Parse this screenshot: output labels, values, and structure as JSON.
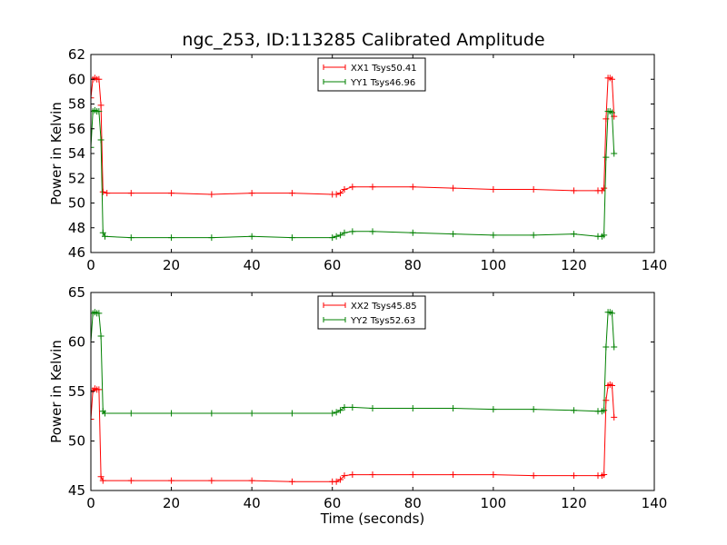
{
  "title": "ngc_253, ID:113285 Calibrated Amplitude",
  "xlabel": "Time (seconds)",
  "chart_data": [
    {
      "type": "line",
      "ylabel": "Power in Kelvin",
      "xlim": [
        0,
        140
      ],
      "ylim": [
        46,
        62
      ],
      "xticks": [
        "0",
        "20",
        "40",
        "60",
        "80",
        "100",
        "120",
        "140"
      ],
      "yticks": [
        "46",
        "48",
        "50",
        "52",
        "54",
        "56",
        "58",
        "60",
        "62"
      ],
      "legend_placement": "top-center",
      "series": [
        {
          "name": "XX1 Tsys50.41",
          "color": "#ff0000",
          "marker": "+",
          "points": [
            [
              0,
              58.5
            ],
            [
              0.5,
              60
            ],
            [
              1,
              60.1
            ],
            [
              1.5,
              60
            ],
            [
              2,
              60
            ],
            [
              2.5,
              57.9
            ],
            [
              3,
              50.9
            ],
            [
              4,
              50.8
            ],
            [
              10,
              50.8
            ],
            [
              20,
              50.8
            ],
            [
              30,
              50.7
            ],
            [
              40,
              50.8
            ],
            [
              50,
              50.8
            ],
            [
              60,
              50.7
            ],
            [
              61,
              50.7
            ],
            [
              62,
              50.8
            ],
            [
              63,
              51.1
            ],
            [
              65,
              51.3
            ],
            [
              70,
              51.3
            ],
            [
              80,
              51.3
            ],
            [
              90,
              51.2
            ],
            [
              100,
              51.1
            ],
            [
              110,
              51.1
            ],
            [
              120,
              51
            ],
            [
              126,
              51
            ],
            [
              127,
              51
            ],
            [
              127.5,
              51.2
            ],
            [
              128,
              56.8
            ],
            [
              128.5,
              60.1
            ],
            [
              129,
              60.1
            ],
            [
              129.5,
              60
            ],
            [
              130,
              57
            ]
          ]
        },
        {
          "name": "YY1 Tsys46.96",
          "color": "#008000",
          "marker": "+",
          "points": [
            [
              0,
              54.5
            ],
            [
              0.5,
              57.4
            ],
            [
              1,
              57.5
            ],
            [
              1.5,
              57.4
            ],
            [
              2,
              57.4
            ],
            [
              2.5,
              55.1
            ],
            [
              3,
              47.6
            ],
            [
              3.5,
              47.3
            ],
            [
              10,
              47.2
            ],
            [
              20,
              47.2
            ],
            [
              30,
              47.2
            ],
            [
              40,
              47.3
            ],
            [
              50,
              47.2
            ],
            [
              60,
              47.2
            ],
            [
              61,
              47.3
            ],
            [
              62,
              47.4
            ],
            [
              63,
              47.6
            ],
            [
              65,
              47.7
            ],
            [
              70,
              47.7
            ],
            [
              80,
              47.6
            ],
            [
              90,
              47.5
            ],
            [
              100,
              47.4
            ],
            [
              110,
              47.4
            ],
            [
              120,
              47.5
            ],
            [
              126,
              47.3
            ],
            [
              127,
              47.3
            ],
            [
              127.5,
              47.4
            ],
            [
              128,
              53.7
            ],
            [
              128.5,
              57.4
            ],
            [
              129,
              57.4
            ],
            [
              129.5,
              57.3
            ],
            [
              130,
              54
            ]
          ]
        }
      ]
    },
    {
      "type": "line",
      "ylabel": "Power in Kelvin",
      "xlabel": "Time (seconds)",
      "xlim": [
        0,
        140
      ],
      "ylim": [
        45,
        65
      ],
      "xticks": [
        "0",
        "20",
        "40",
        "60",
        "80",
        "100",
        "120",
        "140"
      ],
      "yticks": [
        "45",
        "50",
        "55",
        "60",
        "65"
      ],
      "legend_placement": "top-center",
      "series": [
        {
          "name": "XX2 Tsys45.85",
          "color": "#ff0000",
          "marker": "+",
          "points": [
            [
              0,
              52.2
            ],
            [
              0.5,
              55.1
            ],
            [
              1,
              55.3
            ],
            [
              1.5,
              55.2
            ],
            [
              2,
              55.2
            ],
            [
              2.5,
              46.4
            ],
            [
              3,
              46
            ],
            [
              10,
              46
            ],
            [
              20,
              46
            ],
            [
              30,
              46
            ],
            [
              40,
              46
            ],
            [
              50,
              45.9
            ],
            [
              60,
              45.9
            ],
            [
              61,
              45.9
            ],
            [
              62,
              46.1
            ],
            [
              63,
              46.5
            ],
            [
              65,
              46.6
            ],
            [
              70,
              46.6
            ],
            [
              80,
              46.6
            ],
            [
              90,
              46.6
            ],
            [
              100,
              46.6
            ],
            [
              110,
              46.5
            ],
            [
              120,
              46.5
            ],
            [
              126,
              46.5
            ],
            [
              127,
              46.5
            ],
            [
              127.5,
              46.6
            ],
            [
              128,
              54.1
            ],
            [
              128.5,
              55.6
            ],
            [
              129,
              55.7
            ],
            [
              129.5,
              55.6
            ],
            [
              130,
              52.4
            ]
          ]
        },
        {
          "name": "YY2 Tsys52.63",
          "color": "#008000",
          "marker": "+",
          "points": [
            [
              0,
              60
            ],
            [
              0.5,
              62.9
            ],
            [
              1,
              63
            ],
            [
              1.5,
              62.9
            ],
            [
              2,
              62.9
            ],
            [
              2.5,
              60.6
            ],
            [
              3,
              53
            ],
            [
              3.5,
              52.8
            ],
            [
              10,
              52.8
            ],
            [
              20,
              52.8
            ],
            [
              30,
              52.8
            ],
            [
              40,
              52.8
            ],
            [
              50,
              52.8
            ],
            [
              60,
              52.8
            ],
            [
              61,
              52.9
            ],
            [
              62,
              53.1
            ],
            [
              63,
              53.4
            ],
            [
              65,
              53.4
            ],
            [
              70,
              53.3
            ],
            [
              80,
              53.3
            ],
            [
              90,
              53.3
            ],
            [
              100,
              53.2
            ],
            [
              110,
              53.2
            ],
            [
              120,
              53.1
            ],
            [
              126,
              53
            ],
            [
              127,
              53
            ],
            [
              127.5,
              53.1
            ],
            [
              128,
              59.5
            ],
            [
              128.5,
              63
            ],
            [
              129,
              63
            ],
            [
              129.5,
              62.9
            ],
            [
              130,
              59.5
            ]
          ]
        }
      ]
    }
  ]
}
